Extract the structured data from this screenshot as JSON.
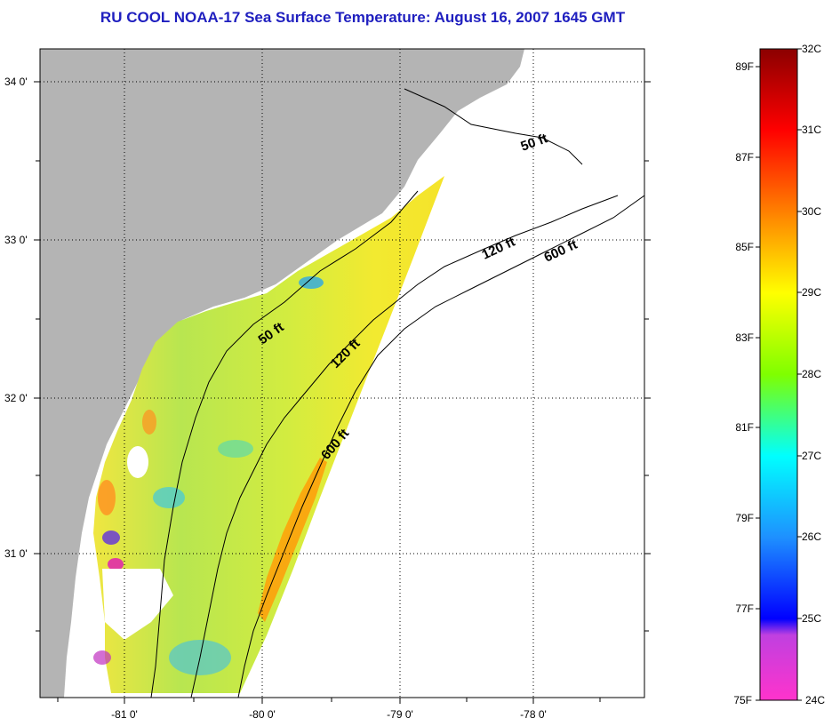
{
  "title": "RU COOL  NOAA-17  Sea Surface Temperature:  August 16, 2007 1645 GMT",
  "map": {
    "lat_labels": [
      "34 0'",
      "33 0'",
      "32 0'",
      "31 0'"
    ],
    "lon_labels": [
      "-81 0'",
      "-80 0'",
      "-79 0'",
      "-78 0'"
    ],
    "contours": [
      "50 ft",
      "120 ft",
      "600 ft",
      "50 ft",
      "120 ft",
      "600 ft"
    ],
    "colors": {
      "land": "#b4b4b4",
      "ocean_nodata": "#ffffff",
      "grid": "#000000"
    }
  },
  "colorbar": {
    "celsius_labels": [
      "32C",
      "31C",
      "30C",
      "29C",
      "28C",
      "27C",
      "26C",
      "25C",
      "24C"
    ],
    "fahrenheit_labels": [
      "89F",
      "87F",
      "85F",
      "83F",
      "81F",
      "79F",
      "77F",
      "75F"
    ],
    "range_c": [
      24,
      32
    ],
    "range_f": [
      75,
      89.6
    ]
  },
  "legend_colors": [
    "#ff33cc",
    "#ff33cc",
    "#c040e0",
    "#0000ff",
    "#1e90ff",
    "#00ffff",
    "#7fff00",
    "#ffff00",
    "#ff8000",
    "#ff0000",
    "#8b0000"
  ]
}
